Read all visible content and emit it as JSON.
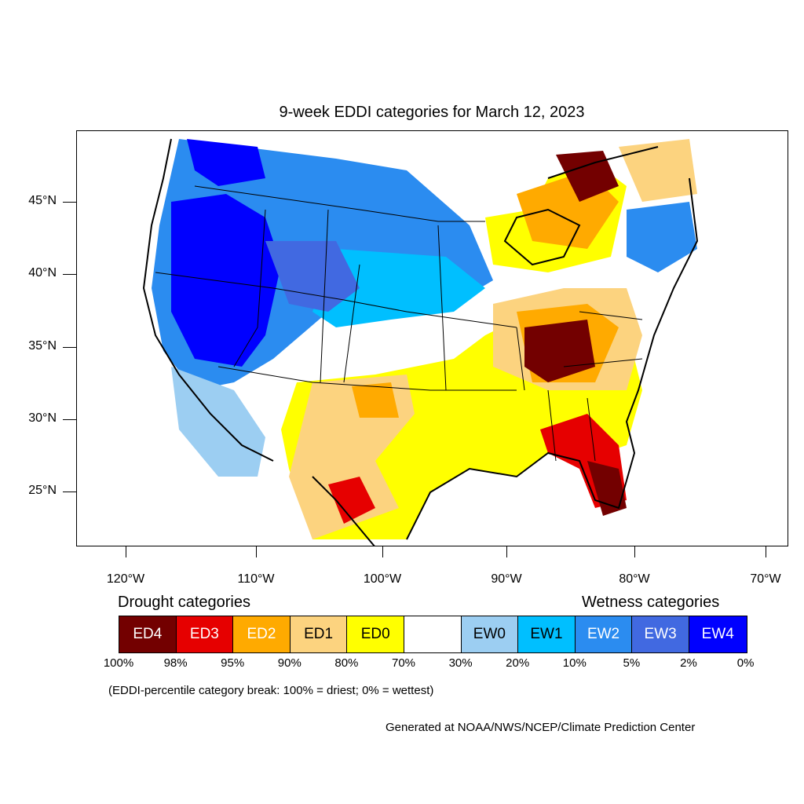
{
  "title": "9-week EDDI categories for March 12, 2023",
  "lat_labels": [
    "45°N",
    "40°N",
    "35°N",
    "30°N",
    "25°N"
  ],
  "lon_labels": [
    "120°W",
    "110°W",
    "100°W",
    "90°W",
    "80°W",
    "70°W"
  ],
  "legend": {
    "drought_heading": "Drought categories",
    "wetness_heading": "Wetness categories",
    "categories": [
      {
        "label": "ED4",
        "color": "#730000",
        "text_color": "#ffffff"
      },
      {
        "label": "ED3",
        "color": "#e60000",
        "text_color": "#ffffff"
      },
      {
        "label": "ED2",
        "color": "#ffaa00",
        "text_color": "#ffffff"
      },
      {
        "label": "ED1",
        "color": "#fcd37f",
        "text_color": "#000000"
      },
      {
        "label": "ED0",
        "color": "#ffff00",
        "text_color": "#000000"
      },
      {
        "label": "",
        "color": "#ffffff",
        "text_color": "#000000"
      },
      {
        "label": "EW0",
        "color": "#9ccef2",
        "text_color": "#000000"
      },
      {
        "label": "EW1",
        "color": "#00bfff",
        "text_color": "#000000"
      },
      {
        "label": "EW2",
        "color": "#2b8cf0",
        "text_color": "#ffffff"
      },
      {
        "label": "EW3",
        "color": "#4169e1",
        "text_color": "#ffffff"
      },
      {
        "label": "EW4",
        "color": "#0000ff",
        "text_color": "#ffffff"
      }
    ],
    "breaks": [
      "100%",
      "98%",
      "95%",
      "90%",
      "80%",
      "70%",
      "30%",
      "20%",
      "10%",
      "5%",
      "2%",
      "0%"
    ]
  },
  "note": "(EDDI-percentile category break: 100% = driest; 0% = wettest)",
  "credit": "Generated at NOAA/NWS/NCEP/Climate Prediction Center"
}
